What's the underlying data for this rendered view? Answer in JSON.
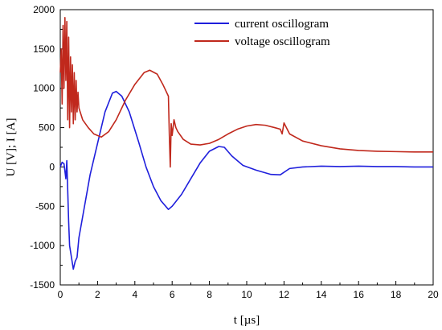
{
  "chart_data": {
    "type": "line",
    "xlabel": "t [µs]",
    "ylabel": "U [V]; I [A]",
    "xlim": [
      0,
      20
    ],
    "ylim": [
      -1500,
      2000
    ],
    "x_ticks": [
      "0",
      "2",
      "4",
      "6",
      "8",
      "10",
      "12",
      "14",
      "16",
      "18",
      "20"
    ],
    "y_ticks": [
      "-1500",
      "-1000",
      "-500",
      "0",
      "500",
      "1000",
      "1500",
      "2000"
    ],
    "grid": false,
    "legend_position": "top-right",
    "series": [
      {
        "name": "current oscillogram",
        "color": "#1f1fdc",
        "points": [
          [
            0,
            0
          ],
          [
            0.1,
            60
          ],
          [
            0.2,
            40
          ],
          [
            0.3,
            -150
          ],
          [
            0.35,
            80
          ],
          [
            0.4,
            -300
          ],
          [
            0.45,
            -700
          ],
          [
            0.5,
            -1000
          ],
          [
            0.6,
            -1150
          ],
          [
            0.7,
            -1300
          ],
          [
            0.8,
            -1200
          ],
          [
            0.9,
            -1150
          ],
          [
            1.0,
            -900
          ],
          [
            1.3,
            -500
          ],
          [
            1.6,
            -100
          ],
          [
            2.0,
            300
          ],
          [
            2.4,
            700
          ],
          [
            2.8,
            940
          ],
          [
            3.0,
            960
          ],
          [
            3.3,
            900
          ],
          [
            3.7,
            700
          ],
          [
            4.2,
            320
          ],
          [
            4.6,
            0
          ],
          [
            5.0,
            -250
          ],
          [
            5.4,
            -430
          ],
          [
            5.8,
            -540
          ],
          [
            6.0,
            -500
          ],
          [
            6.5,
            -350
          ],
          [
            7.0,
            -150
          ],
          [
            7.5,
            50
          ],
          [
            8.0,
            200
          ],
          [
            8.5,
            260
          ],
          [
            8.8,
            250
          ],
          [
            9.2,
            140
          ],
          [
            9.8,
            20
          ],
          [
            10.5,
            -40
          ],
          [
            11.3,
            -95
          ],
          [
            11.8,
            -100
          ],
          [
            12.3,
            -20
          ],
          [
            13.0,
            0
          ],
          [
            14.0,
            10
          ],
          [
            15.0,
            5
          ],
          [
            16.0,
            10
          ],
          [
            17.0,
            5
          ],
          [
            18.0,
            5
          ],
          [
            19.0,
            0
          ],
          [
            20.0,
            0
          ]
        ]
      },
      {
        "name": "voltage oscillogram",
        "color": "#c0281c",
        "points": [
          [
            0,
            1200
          ],
          [
            0.05,
            1500
          ],
          [
            0.1,
            800
          ],
          [
            0.15,
            1800
          ],
          [
            0.2,
            1000
          ],
          [
            0.25,
            1900
          ],
          [
            0.3,
            1100
          ],
          [
            0.35,
            1850
          ],
          [
            0.4,
            600
          ],
          [
            0.45,
            1650
          ],
          [
            0.5,
            500
          ],
          [
            0.55,
            1400
          ],
          [
            0.6,
            700
          ],
          [
            0.65,
            1300
          ],
          [
            0.7,
            550
          ],
          [
            0.75,
            1200
          ],
          [
            0.8,
            600
          ],
          [
            0.85,
            1100
          ],
          [
            0.9,
            700
          ],
          [
            0.95,
            950
          ],
          [
            1.0,
            750
          ],
          [
            1.2,
            600
          ],
          [
            1.5,
            500
          ],
          [
            1.8,
            420
          ],
          [
            2.2,
            380
          ],
          [
            2.6,
            450
          ],
          [
            3.0,
            600
          ],
          [
            3.5,
            850
          ],
          [
            4.0,
            1050
          ],
          [
            4.5,
            1200
          ],
          [
            4.8,
            1230
          ],
          [
            5.2,
            1180
          ],
          [
            5.5,
            1050
          ],
          [
            5.8,
            900
          ],
          [
            5.85,
            400
          ],
          [
            5.9,
            0
          ],
          [
            5.95,
            550
          ],
          [
            6.0,
            400
          ],
          [
            6.1,
            600
          ],
          [
            6.2,
            500
          ],
          [
            6.3,
            450
          ],
          [
            6.6,
            350
          ],
          [
            7.0,
            290
          ],
          [
            7.5,
            280
          ],
          [
            8.0,
            300
          ],
          [
            8.5,
            350
          ],
          [
            9.0,
            420
          ],
          [
            9.5,
            480
          ],
          [
            10.0,
            520
          ],
          [
            10.5,
            540
          ],
          [
            11.0,
            530
          ],
          [
            11.5,
            500
          ],
          [
            11.8,
            480
          ],
          [
            11.9,
            420
          ],
          [
            12.0,
            560
          ],
          [
            12.3,
            420
          ],
          [
            13.0,
            330
          ],
          [
            14.0,
            270
          ],
          [
            15.0,
            230
          ],
          [
            16.0,
            210
          ],
          [
            17.0,
            200
          ],
          [
            18.0,
            195
          ],
          [
            19.0,
            190
          ],
          [
            20.0,
            190
          ]
        ]
      }
    ]
  }
}
